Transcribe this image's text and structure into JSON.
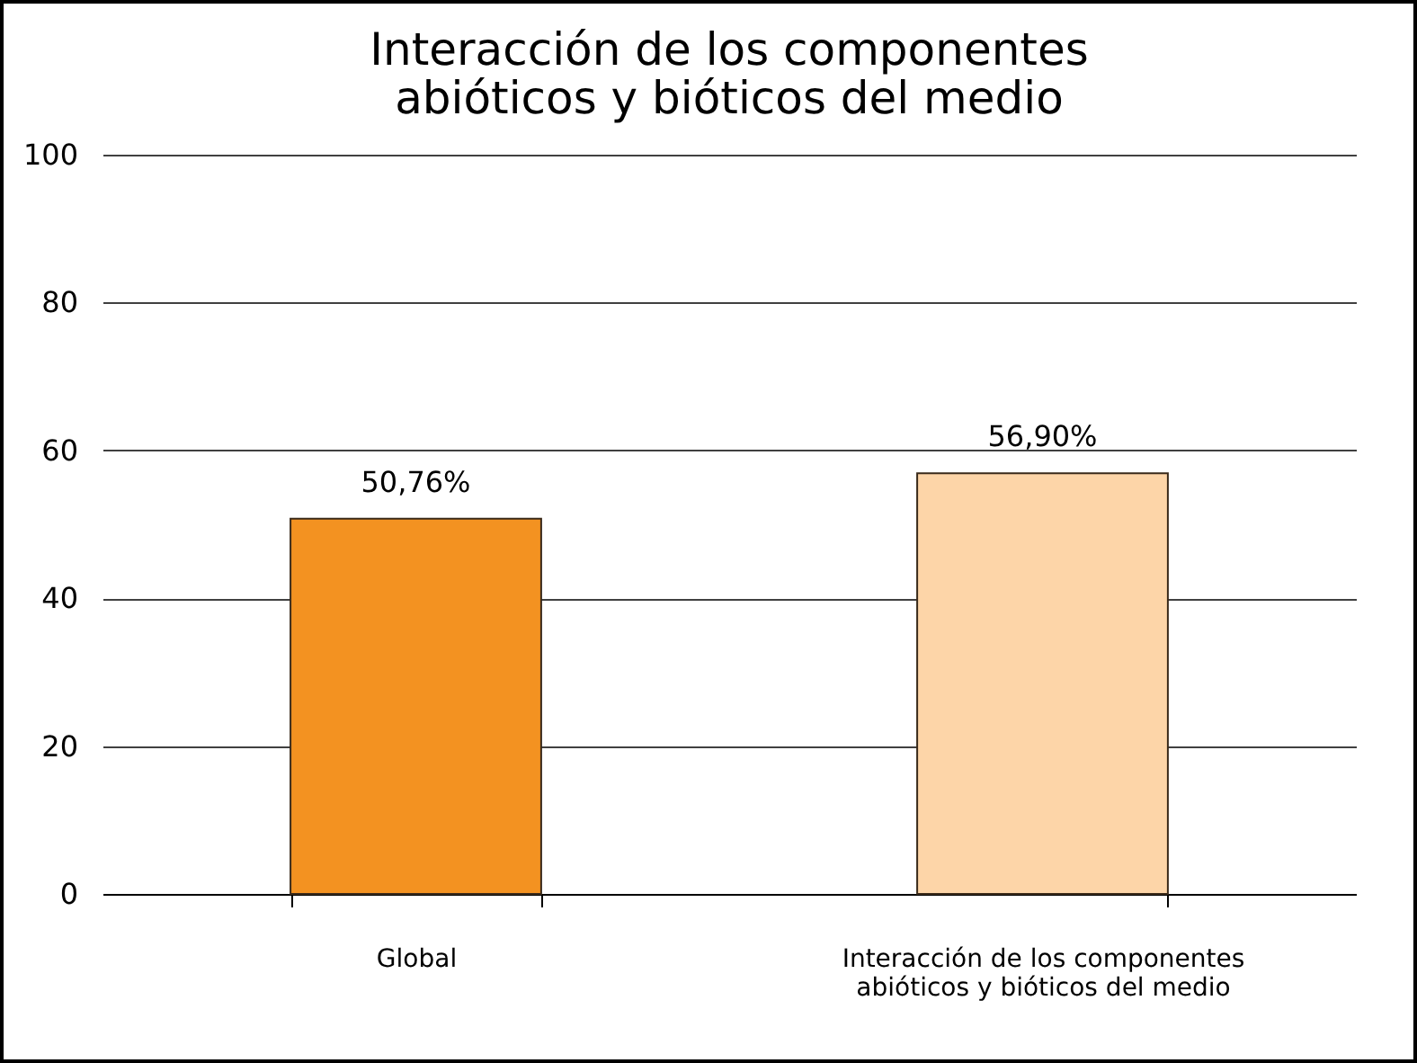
{
  "chart_data": {
    "type": "bar",
    "title": "Interacción de los componentes abióticos y bióticos del medio",
    "categories": [
      "Global",
      "Interacción de los componentes abióticos y bióticos del medio"
    ],
    "values": [
      50.76,
      56.9
    ],
    "colors": [
      "#f39221",
      "#fdd5a8"
    ],
    "value_labels": [
      "50,76%",
      "56,90%"
    ],
    "ylim": [
      0,
      100
    ],
    "yticks": [
      0,
      20,
      40,
      60,
      80,
      100
    ],
    "grid": "y"
  }
}
